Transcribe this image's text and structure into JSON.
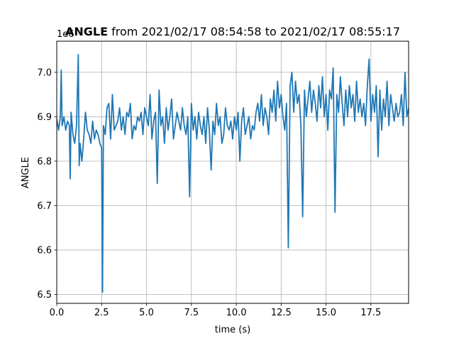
{
  "chart_data": {
    "type": "line",
    "title_bold": "ANGLE",
    "title_rest": " from 2021/02/17 08:54:58 to 2021/02/17 08:55:17",
    "xlabel": "time (s)",
    "ylabel": "ANGLE",
    "y_offset_label": "1e6",
    "xlim": [
      0.0,
      19.6
    ],
    "ylim": [
      6.48,
      7.07
    ],
    "x_ticks": [
      0.0,
      2.5,
      5.0,
      7.5,
      10.0,
      12.5,
      15.0,
      17.5
    ],
    "x_tick_labels": [
      "0.0",
      "2.5",
      "5.0",
      "7.5",
      "10.0",
      "12.5",
      "15.0",
      "17.5"
    ],
    "y_ticks": [
      6.5,
      6.6,
      6.7,
      6.8,
      6.9,
      7.0
    ],
    "y_tick_labels": [
      "6.5",
      "6.6",
      "6.7",
      "6.8",
      "6.9",
      "7.0"
    ],
    "grid": true,
    "series": [
      {
        "color": "#1f77b4",
        "x": [
          0.0,
          0.1,
          0.2,
          0.25,
          0.3,
          0.4,
          0.5,
          0.6,
          0.7,
          0.75,
          0.8,
          0.9,
          1.0,
          1.1,
          1.2,
          1.25,
          1.3,
          1.4,
          1.5,
          1.6,
          1.7,
          1.8,
          1.9,
          2.0,
          2.1,
          2.2,
          2.3,
          2.4,
          2.5,
          2.55,
          2.6,
          2.7,
          2.8,
          2.9,
          3.0,
          3.1,
          3.2,
          3.3,
          3.4,
          3.5,
          3.6,
          3.7,
          3.8,
          3.9,
          4.0,
          4.1,
          4.2,
          4.3,
          4.4,
          4.5,
          4.6,
          4.7,
          4.8,
          4.9,
          5.0,
          5.1,
          5.2,
          5.3,
          5.4,
          5.5,
          5.6,
          5.7,
          5.8,
          5.9,
          6.0,
          6.1,
          6.2,
          6.3,
          6.4,
          6.5,
          6.6,
          6.7,
          6.8,
          6.9,
          7.0,
          7.1,
          7.2,
          7.3,
          7.4,
          7.5,
          7.6,
          7.7,
          7.8,
          7.9,
          8.0,
          8.1,
          8.2,
          8.3,
          8.4,
          8.5,
          8.6,
          8.7,
          8.8,
          8.9,
          9.0,
          9.1,
          9.2,
          9.3,
          9.4,
          9.5,
          9.6,
          9.7,
          9.8,
          9.9,
          10.0,
          10.1,
          10.2,
          10.3,
          10.4,
          10.5,
          10.6,
          10.7,
          10.8,
          10.9,
          11.0,
          11.1,
          11.2,
          11.3,
          11.4,
          11.5,
          11.6,
          11.7,
          11.8,
          11.9,
          12.0,
          12.1,
          12.2,
          12.3,
          12.4,
          12.5,
          12.6,
          12.7,
          12.8,
          12.9,
          13.0,
          13.1,
          13.2,
          13.3,
          13.4,
          13.5,
          13.6,
          13.7,
          13.8,
          13.9,
          14.0,
          14.1,
          14.2,
          14.3,
          14.4,
          14.5,
          14.6,
          14.7,
          14.8,
          14.9,
          15.0,
          15.1,
          15.2,
          15.3,
          15.4,
          15.5,
          15.6,
          15.7,
          15.8,
          15.9,
          16.0,
          16.1,
          16.2,
          16.3,
          16.4,
          16.5,
          16.6,
          16.7,
          16.8,
          16.9,
          17.0,
          17.1,
          17.2,
          17.3,
          17.4,
          17.5,
          17.6,
          17.7,
          17.8,
          17.9,
          18.0,
          18.1,
          18.2,
          18.3,
          18.4,
          18.5,
          18.6,
          18.7,
          18.8,
          18.9,
          19.0,
          19.1,
          19.2,
          19.3,
          19.4,
          19.5,
          19.6
        ],
        "values": [
          6.895,
          6.87,
          6.9,
          7.005,
          6.88,
          6.9,
          6.87,
          6.89,
          6.88,
          6.76,
          6.91,
          6.86,
          6.84,
          6.88,
          7.04,
          6.79,
          6.84,
          6.8,
          6.85,
          6.91,
          6.87,
          6.86,
          6.84,
          6.89,
          6.85,
          6.87,
          6.86,
          6.84,
          6.83,
          6.505,
          6.88,
          6.86,
          6.92,
          6.93,
          6.85,
          6.95,
          6.87,
          6.88,
          6.89,
          6.92,
          6.87,
          6.9,
          6.86,
          6.91,
          6.9,
          6.93,
          6.85,
          6.88,
          6.87,
          6.9,
          6.89,
          6.91,
          6.86,
          6.92,
          6.9,
          6.88,
          6.95,
          6.85,
          6.89,
          6.91,
          6.75,
          6.96,
          6.88,
          6.9,
          6.84,
          6.92,
          6.87,
          6.9,
          6.94,
          6.85,
          6.88,
          6.91,
          6.89,
          6.87,
          6.92,
          6.88,
          6.86,
          6.9,
          6.72,
          6.93,
          6.87,
          6.9,
          6.85,
          6.91,
          6.88,
          6.86,
          6.9,
          6.84,
          6.92,
          6.87,
          6.78,
          6.89,
          6.86,
          6.93,
          6.88,
          6.9,
          6.84,
          6.86,
          6.92,
          6.88,
          6.87,
          6.89,
          6.85,
          6.9,
          6.87,
          6.91,
          6.8,
          6.89,
          6.92,
          6.86,
          6.88,
          6.9,
          6.85,
          6.88,
          6.87,
          6.91,
          6.93,
          6.89,
          6.95,
          6.88,
          6.92,
          6.9,
          6.86,
          6.94,
          6.91,
          6.96,
          6.89,
          6.98,
          6.92,
          6.95,
          6.9,
          6.87,
          6.93,
          6.605,
          6.97,
          7.0,
          6.91,
          6.98,
          6.93,
          6.95,
          6.88,
          6.675,
          6.96,
          6.9,
          6.94,
          6.98,
          6.91,
          6.96,
          6.93,
          6.89,
          6.97,
          6.92,
          6.99,
          6.9,
          6.95,
          6.87,
          6.96,
          6.94,
          7.01,
          6.685,
          6.95,
          6.91,
          6.99,
          6.93,
          6.88,
          6.96,
          6.9,
          6.97,
          6.92,
          6.95,
          6.89,
          6.98,
          6.91,
          6.94,
          6.9,
          6.93,
          6.88,
          6.97,
          7.03,
          6.89,
          6.95,
          6.91,
          6.97,
          6.81,
          6.96,
          6.87,
          6.94,
          6.9,
          6.98,
          6.88,
          6.95,
          6.92,
          6.89,
          6.93,
          6.9,
          6.91,
          6.95,
          6.88,
          7.0,
          6.9,
          6.92
        ]
      }
    ]
  }
}
